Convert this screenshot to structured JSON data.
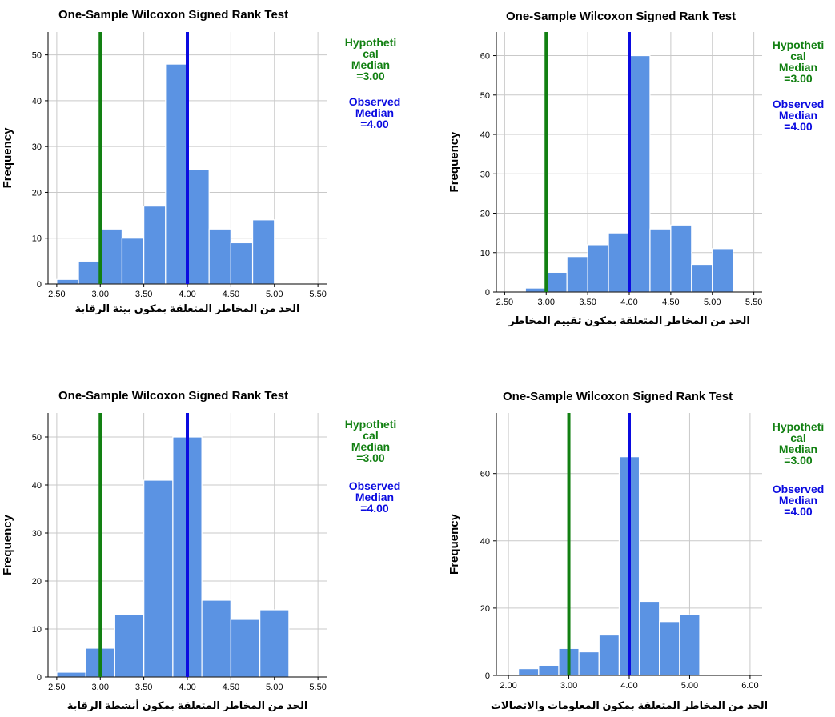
{
  "chart_data": [
    {
      "type": "bar",
      "title": "One-Sample Wilcoxon Signed Rank Test",
      "xlabel": "الحد من المخاطر المتعلقة بمكون بيئة الرقابة",
      "ylabel": "Frequency",
      "xlim": [
        2.4,
        5.6
      ],
      "ylim": [
        0,
        55
      ],
      "xticks": [
        "2.50",
        "3.00",
        "3.50",
        "4.00",
        "4.50",
        "5.00",
        "5.50"
      ],
      "xtick_values": [
        2.5,
        3.0,
        3.5,
        4.0,
        4.5,
        5.0,
        5.5
      ],
      "yticks": [
        "0",
        "10",
        "20",
        "30",
        "40",
        "50"
      ],
      "ytick_values": [
        0,
        10,
        20,
        30,
        40,
        50
      ],
      "bin_width": 0.25,
      "bins": [
        2.625,
        2.875,
        3.125,
        3.375,
        3.625,
        3.875,
        4.125,
        4.375,
        4.625,
        4.875
      ],
      "values": [
        1,
        5,
        12,
        10,
        17,
        48,
        25,
        12,
        9,
        14
      ],
      "hypothetical_median": 3.0,
      "observed_median": 4.0,
      "legend": {
        "hyp_lines": [
          "Hypotheti",
          "cal",
          "Median",
          "=3.00"
        ],
        "obs_lines": [
          "Observed",
          "Median",
          "=4.00"
        ],
        "placement": "right"
      },
      "colors": {
        "bar": "#5b93e3",
        "hyp": "#128012",
        "obs": "#0b0be0"
      },
      "grid": true
    },
    {
      "type": "bar",
      "title": "One-Sample Wilcoxon Signed Rank Test",
      "xlabel": "الحد من المخاطر المتعلقة بمكون تقييم المخاطر",
      "ylabel": "Frequency",
      "xlim": [
        2.4,
        5.6
      ],
      "ylim": [
        0,
        66
      ],
      "xticks": [
        "2.50",
        "3.00",
        "3.50",
        "4.00",
        "4.50",
        "5.00",
        "5.50"
      ],
      "xtick_values": [
        2.5,
        3.0,
        3.5,
        4.0,
        4.5,
        5.0,
        5.5
      ],
      "yticks": [
        "0",
        "10",
        "20",
        "30",
        "40",
        "50",
        "60"
      ],
      "ytick_values": [
        0,
        10,
        20,
        30,
        40,
        50,
        60
      ],
      "bin_width": 0.25,
      "bins": [
        2.875,
        3.125,
        3.375,
        3.625,
        3.875,
        4.125,
        4.375,
        4.625,
        4.875,
        5.125
      ],
      "values": [
        1,
        5,
        9,
        12,
        15,
        60,
        16,
        17,
        7,
        11
      ],
      "hypothetical_median": 3.0,
      "observed_median": 4.0,
      "legend": {
        "hyp_lines": [
          "Hypotheti",
          "cal",
          "Median",
          "=3.00"
        ],
        "obs_lines": [
          "Observed",
          "Median",
          "=4.00"
        ],
        "placement": "right"
      },
      "colors": {
        "bar": "#5b93e3",
        "hyp": "#128012",
        "obs": "#0b0be0"
      },
      "grid": true
    },
    {
      "type": "bar",
      "title": "One-Sample Wilcoxon Signed Rank Test",
      "xlabel": "الحد من المخاطر المتعلقة بمكون أنشطة الرقابة",
      "ylabel": "Frequency",
      "xlim": [
        2.4,
        5.6
      ],
      "ylim": [
        0,
        55
      ],
      "xticks": [
        "2.50",
        "3.00",
        "3.50",
        "4.00",
        "4.50",
        "5.00",
        "5.50"
      ],
      "xtick_values": [
        2.5,
        3.0,
        3.5,
        4.0,
        4.5,
        5.0,
        5.5
      ],
      "yticks": [
        "0",
        "10",
        "20",
        "30",
        "40",
        "50"
      ],
      "ytick_values": [
        0,
        10,
        20,
        30,
        40,
        50
      ],
      "bin_width": 0.333,
      "bins": [
        2.667,
        3.0,
        3.333,
        3.667,
        4.0,
        4.333,
        4.667,
        5.0
      ],
      "values": [
        1,
        6,
        13,
        41,
        50,
        16,
        12,
        14
      ],
      "hypothetical_median": 3.0,
      "observed_median": 4.0,
      "legend": {
        "hyp_lines": [
          "Hypotheti",
          "cal",
          "Median",
          "=3.00"
        ],
        "obs_lines": [
          "Observed",
          "Median",
          "=4.00"
        ],
        "placement": "right"
      },
      "colors": {
        "bar": "#5b93e3",
        "hyp": "#128012",
        "obs": "#0b0be0"
      },
      "grid": true
    },
    {
      "type": "bar",
      "title": "One-Sample Wilcoxon Signed Rank Test",
      "xlabel": "الحد من المخاطر المتعلقة بمكون المعلومات والاتصالات",
      "ylabel": "Frequency",
      "xlim": [
        1.8,
        6.2
      ],
      "ylim": [
        0,
        78
      ],
      "xticks": [
        "2.00",
        "3.00",
        "4.00",
        "5.00",
        "6.00"
      ],
      "xtick_values": [
        2.0,
        3.0,
        4.0,
        5.0,
        6.0
      ],
      "yticks": [
        "0",
        "20",
        "40",
        "60"
      ],
      "ytick_values": [
        0,
        20,
        40,
        60
      ],
      "bin_width": 0.333,
      "bins": [
        2.333,
        2.667,
        3.0,
        3.333,
        3.667,
        4.0,
        4.333,
        4.667,
        5.0
      ],
      "values": [
        2,
        3,
        8,
        7,
        12,
        65,
        22,
        16,
        18
      ],
      "hypothetical_median": 3.0,
      "observed_median": 4.0,
      "legend": {
        "hyp_lines": [
          "Hypotheti",
          "cal",
          "Median",
          "=3.00"
        ],
        "obs_lines": [
          "Observed",
          "Median",
          "=4.00"
        ],
        "placement": "right"
      },
      "colors": {
        "bar": "#5b93e3",
        "hyp": "#128012",
        "obs": "#0b0be0"
      },
      "grid": true
    }
  ]
}
